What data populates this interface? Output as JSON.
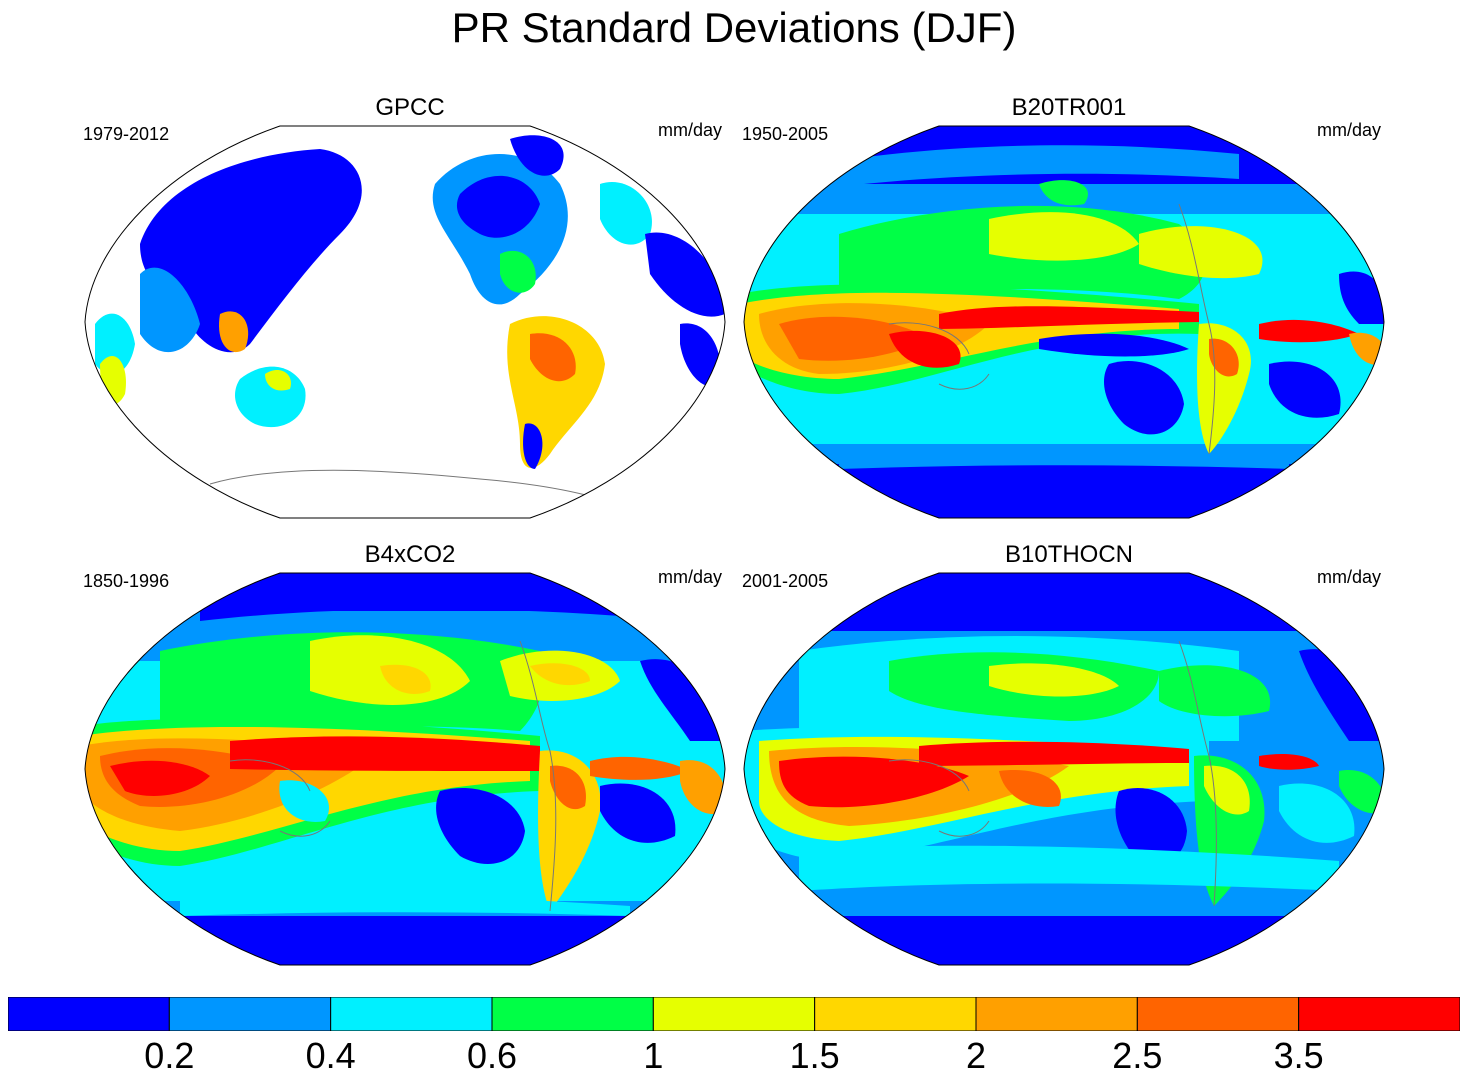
{
  "title": "PR Standard Deviations (DJF)",
  "panels": [
    {
      "title": "GPCC",
      "period": "1979-2012",
      "units": "mm/day"
    },
    {
      "title": "B20TR001",
      "period": "1950-2005",
      "units": "mm/day"
    },
    {
      "title": "B4xCO2",
      "period": "1850-1996",
      "units": "mm/day"
    },
    {
      "title": "B10THOCN",
      "period": "2001-2005",
      "units": "mm/day"
    }
  ],
  "colorbar": {
    "colors": [
      "#0000ff",
      "#0096ff",
      "#00f0ff",
      "#00ff46",
      "#e6ff00",
      "#ffd700",
      "#ffa000",
      "#ff6400",
      "#ff0000"
    ],
    "labels": [
      "0.2",
      "0.4",
      "0.6",
      "1",
      "1.5",
      "2",
      "2.5",
      "3.5"
    ]
  }
}
